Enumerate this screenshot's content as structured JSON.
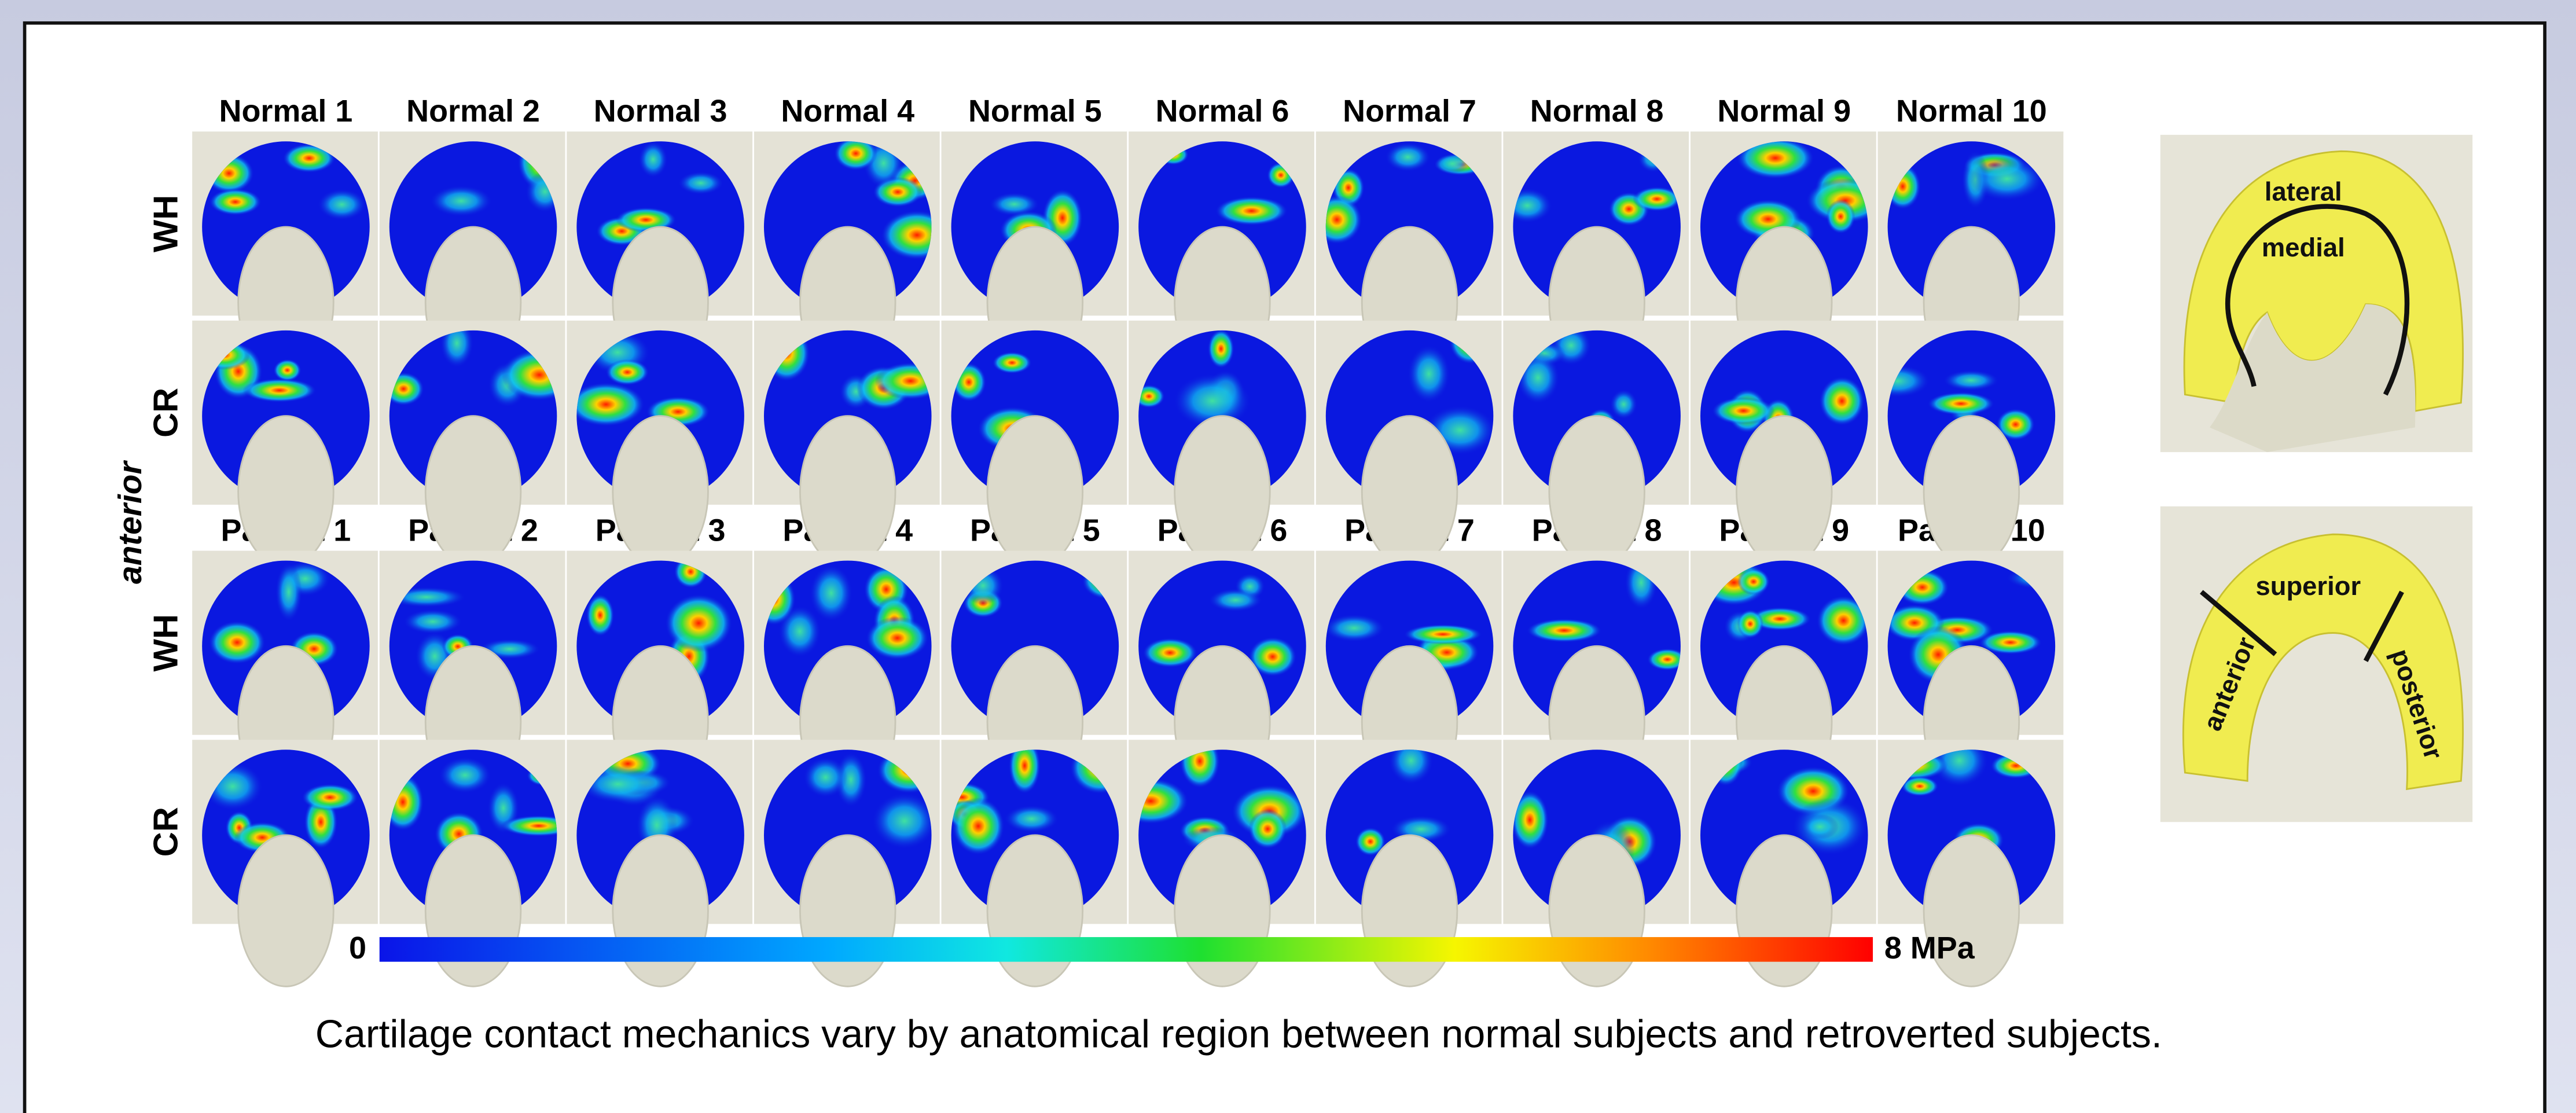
{
  "figure": {
    "normal_labels": [
      "Normal 1",
      "Normal 2",
      "Normal 3",
      "Normal 4",
      "Normal 5",
      "Normal 6",
      "Normal 7",
      "Normal 8",
      "Normal 9",
      "Normal 10"
    ],
    "patient_labels": [
      "Patient 1",
      "Patient 2",
      "Patient 3",
      "Patient 4",
      "Patient 5",
      "Patient 6",
      "Patient 7",
      "Patient 8",
      "Patient 9",
      "Patient 10"
    ],
    "row_labels": [
      "WH",
      "CR",
      "WH",
      "CR"
    ],
    "side_label": "anterior",
    "colorbar_min": "0",
    "colorbar_max": "8 MPa",
    "diagram_top_labels": [
      "lateral",
      "medial"
    ],
    "diagram_bottom_labels": [
      "superior",
      "anterior",
      "posterior"
    ]
  },
  "caption": "Cartilage contact mechanics vary by anatomical region between normal subjects and retroverted subjects."
}
